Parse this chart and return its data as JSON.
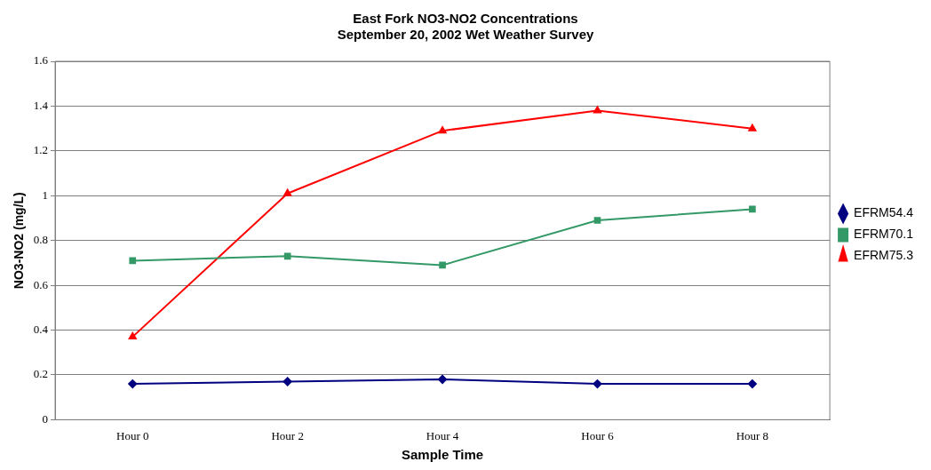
{
  "chart_data": {
    "type": "line",
    "title": "East Fork NO3-NO2 Concentrations",
    "subtitle": "September 20, 2002 Wet Weather Survey",
    "xlabel": "Sample Time",
    "ylabel": "NO3-NO2 (mg/L)",
    "categories": [
      "Hour 0",
      "Hour 2",
      "Hour 4",
      "Hour 6",
      "Hour 8"
    ],
    "series": [
      {
        "name": "EFRM54.4",
        "color": "#000080",
        "marker": "diamond",
        "values": [
          0.16,
          0.17,
          0.18,
          0.16,
          0.16
        ]
      },
      {
        "name": "EFRM70.1",
        "color": "#339966",
        "marker": "square",
        "values": [
          0.71,
          0.73,
          0.69,
          0.89,
          0.94
        ]
      },
      {
        "name": "EFRM75.3",
        "color": "#ff0000",
        "marker": "triangle",
        "values": [
          0.37,
          1.01,
          1.29,
          1.38,
          1.3
        ]
      }
    ],
    "ylim": [
      0,
      1.6
    ],
    "yticks": [
      0,
      0.2,
      0.4,
      0.6,
      0.8,
      1,
      1.2,
      1.4,
      1.6
    ],
    "grid": "y",
    "legend": "right",
    "line_style": "solid"
  }
}
